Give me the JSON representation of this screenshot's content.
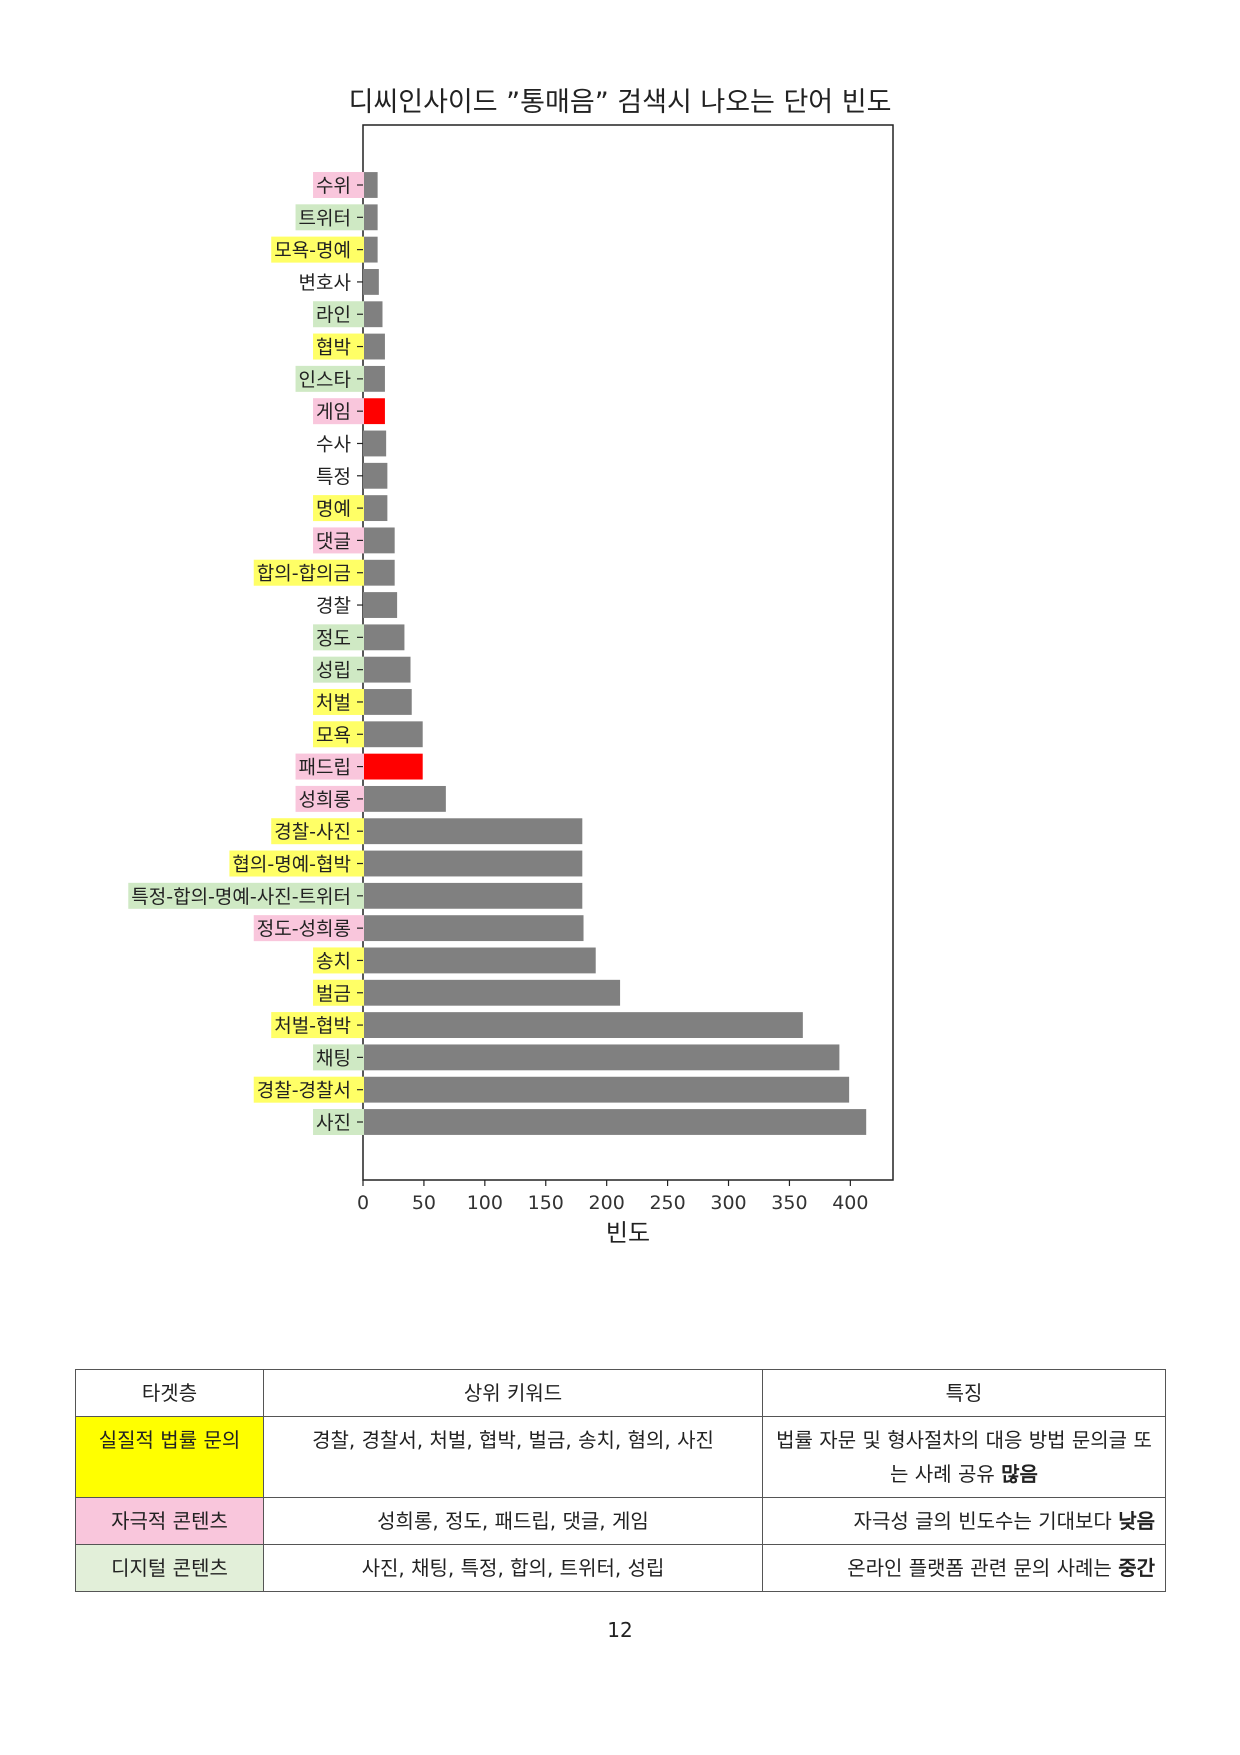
{
  "chart_data": {
    "type": "bar",
    "orientation": "horizontal",
    "title": "디씨인사이드 ”통매음” 검색시 나오는 단어 빈도",
    "xlabel": "빈도",
    "ylabel": "",
    "xlim": [
      0,
      435
    ],
    "xticks": [
      0,
      50,
      100,
      150,
      200,
      250,
      300,
      350,
      400
    ],
    "grid": false,
    "categories": [
      "수위",
      "트위터",
      "모욕-명예",
      "변호사",
      "라인",
      "협박",
      "인스타",
      "게임",
      "수사",
      "특정",
      "명예",
      "댓글",
      "합의-합의금",
      "경찰",
      "정도",
      "성립",
      "처벌",
      "모욕",
      "패드립",
      "성희롱",
      "경찰-사진",
      "협의-명예-협박",
      "특정-합의-명예-사진-트위터",
      "정도-성희롱",
      "송치",
      "벌금",
      "처벌-협박",
      "채팅",
      "경찰-경찰서",
      "사진"
    ],
    "values": [
      12,
      12,
      12,
      13,
      16,
      18,
      18,
      18,
      19,
      20,
      20,
      26,
      26,
      28,
      34,
      39,
      40,
      49,
      49,
      68,
      180,
      180,
      180,
      181,
      191,
      211,
      361,
      391,
      399,
      413
    ],
    "bar_colors": [
      "#808080",
      "#808080",
      "#808080",
      "#808080",
      "#808080",
      "#808080",
      "#808080",
      "#ff0000",
      "#808080",
      "#808080",
      "#808080",
      "#808080",
      "#808080",
      "#808080",
      "#808080",
      "#808080",
      "#808080",
      "#808080",
      "#ff0000",
      "#808080",
      "#808080",
      "#808080",
      "#808080",
      "#808080",
      "#808080",
      "#808080",
      "#808080",
      "#808080",
      "#808080",
      "#808080"
    ],
    "label_highlights": [
      "#f9c6dc",
      "#cfe9c4",
      "#ffff66",
      "",
      "#cfe9c4",
      "#ffff66",
      "#cfe9c4",
      "#f9c6dc",
      "",
      "",
      "#ffff66",
      "#f9c6dc",
      "#ffff66",
      "",
      "#cfe9c4",
      "#cfe9c4",
      "#ffff66",
      "#ffff66",
      "#f9c6dc",
      "#f9c6dc",
      "#ffff66",
      "#ffff66",
      "#cfe9c4",
      "#f9c6dc",
      "#ffff66",
      "#ffff66",
      "#ffff66",
      "#cfe9c4",
      "#ffff66",
      "#cfe9c4"
    ]
  },
  "table": {
    "headers": [
      "타겟층",
      "상위 키워드",
      "특징"
    ],
    "rows": [
      {
        "target": "실질적 법률 문의",
        "target_color": "#ffff00",
        "keywords": "경찰, 경찰서, 처벌, 협박, 벌금, 송치, 혐의, 사진",
        "desc": "법률 자문 및 형사절차의 대응 방법 문의글 또는 사례 공유",
        "desc_strong": "많음"
      },
      {
        "target": "자극적 콘텐츠",
        "target_color": "#f9c6dc",
        "keywords": "성희롱, 정도, 패드립, 댓글, 게임",
        "desc": "자극성 글의 빈도수는 기대보다",
        "desc_strong": "낮음"
      },
      {
        "target": "디지털 콘텐츠",
        "target_color": "#e2efd9",
        "keywords": "사진, 채팅, 특정, 합의, 트위터, 성립",
        "desc": "온라인 플랫폼 관련 문의 사례는",
        "desc_strong": "중간"
      }
    ]
  },
  "page_number": "12"
}
